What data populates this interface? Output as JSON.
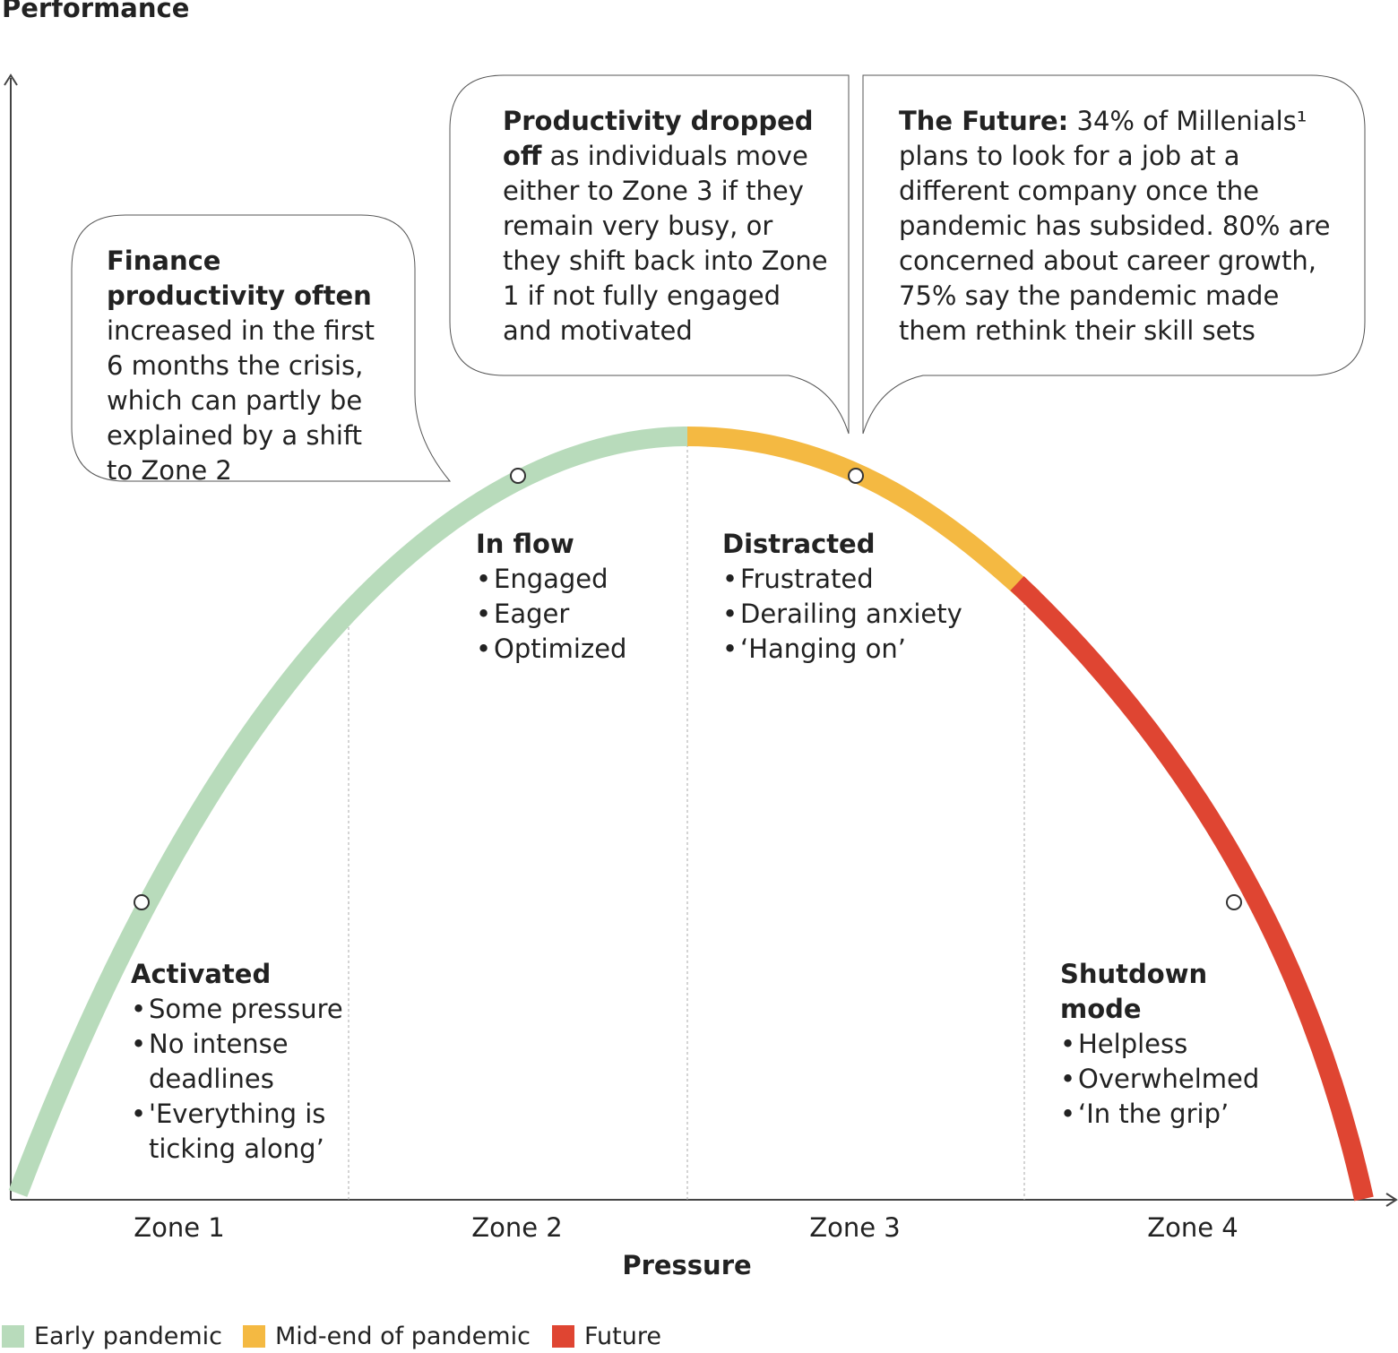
{
  "axes": {
    "y_title": "Performance",
    "x_title": "Pressure"
  },
  "zones": [
    {
      "label": "Zone 1",
      "title": "Activated",
      "bullets": [
        "Some pressure",
        "No intense deadlines",
        "'Everything is ticking along’"
      ]
    },
    {
      "label": "Zone 2",
      "title": "In flow",
      "bullets": [
        "Engaged",
        "Eager",
        "Optimized"
      ]
    },
    {
      "label": "Zone 3",
      "title": "Distracted",
      "bullets": [
        "Frustrated",
        "Derailing anxiety",
        "‘Hanging on’"
      ]
    },
    {
      "label": "Zone 4",
      "title": "Shutdown mode",
      "bullets": [
        "Helpless",
        "Overwhelmed",
        "‘In the grip’"
      ]
    }
  ],
  "callouts": {
    "finance": {
      "bold": "Finance productivity often",
      "text": " increased in the first 6 months the crisis, which can partly be explained by a shift to Zone 2"
    },
    "productivity": {
      "bold": "Productivity dropped off",
      "text": " as individuals move either to Zone 3 if they remain very busy, or they shift back into Zone 1 if not fully engaged and motivated"
    },
    "future": {
      "bold": "The Future:",
      "text": " 34% of Millenials¹ plans to look for a job at a different company once the pandemic has subsided. 80% are concerned about career growth, 75% say the pandemic made them rethink their skill sets"
    }
  },
  "legend": [
    {
      "label": "Early pandemic",
      "color": "#b8dbbb"
    },
    {
      "label": "Mid-end of pandemic",
      "color": "#f4b942"
    },
    {
      "label": "Future",
      "color": "#df4532"
    }
  ],
  "colors": {
    "axis": "#444444",
    "divider": "#aaaaaa",
    "bubble_stroke": "#555555"
  }
}
